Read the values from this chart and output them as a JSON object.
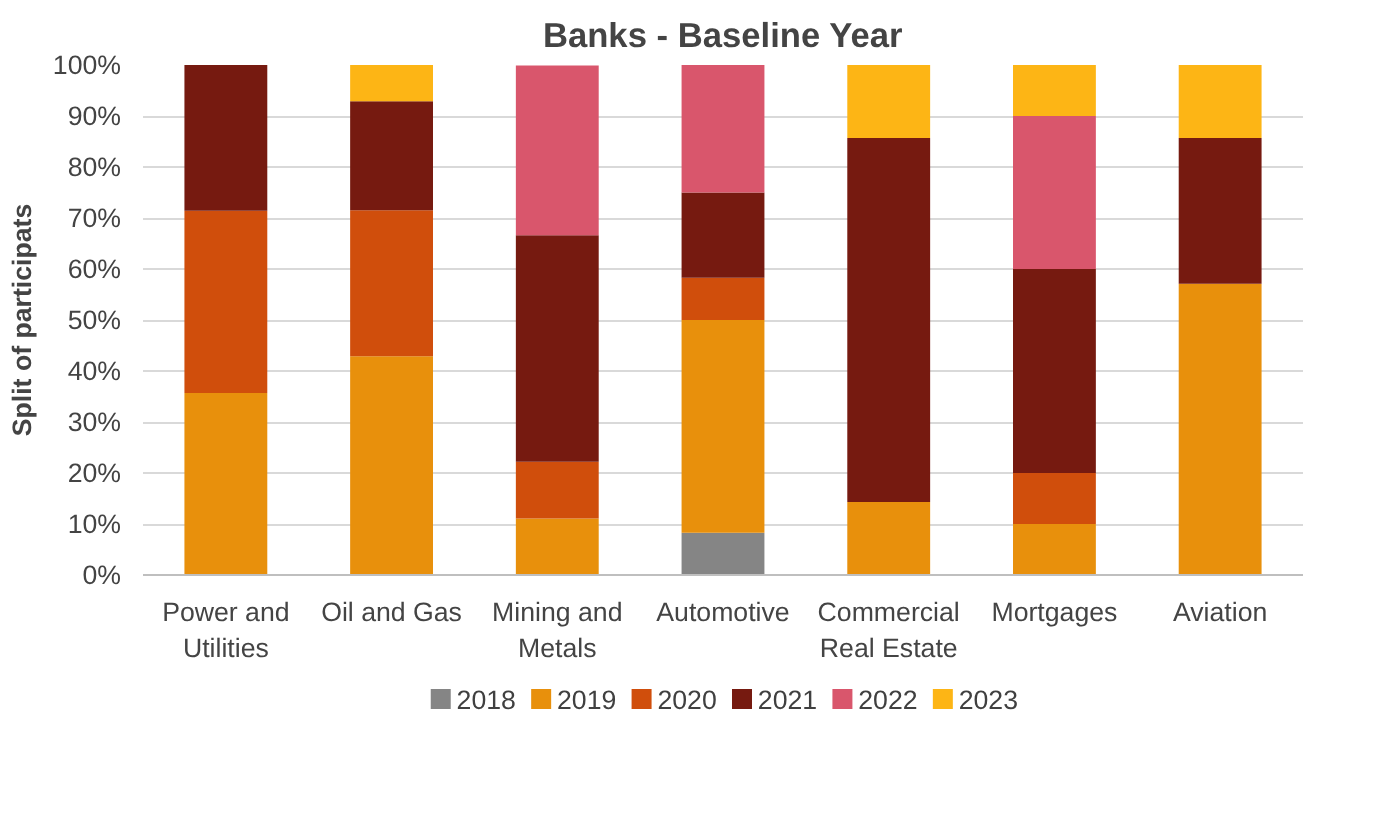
{
  "chart_data": {
    "type": "bar",
    "stacked": true,
    "title": "Banks - Baseline Year",
    "ylabel": "Split of participats",
    "categories": [
      "Power and\nUtilities",
      "Oil and Gas",
      "Mining and\nMetals",
      "Automotive",
      "Commercial\nReal Estate",
      "Mortgages",
      "Aviation"
    ],
    "series": [
      {
        "name": "2018",
        "color": "#858585",
        "values": [
          0,
          0,
          0,
          8.3,
          0,
          0,
          0
        ]
      },
      {
        "name": "2019",
        "color": "#e8900c",
        "values": [
          35.7,
          42.9,
          11.1,
          41.7,
          14.3,
          10,
          57.1
        ]
      },
      {
        "name": "2020",
        "color": "#d04e0c",
        "values": [
          35.7,
          28.6,
          11.1,
          8.3,
          0,
          10,
          0
        ]
      },
      {
        "name": "2021",
        "color": "#761a10",
        "values": [
          28.6,
          21.4,
          44.4,
          16.7,
          71.4,
          40,
          28.6
        ]
      },
      {
        "name": "2022",
        "color": "#d9566c",
        "values": [
          0,
          0,
          33.3,
          25,
          0,
          30,
          0
        ]
      },
      {
        "name": "2023",
        "color": "#fdb515",
        "values": [
          0,
          7.1,
          0,
          0,
          14.3,
          10,
          14.3
        ]
      }
    ],
    "ylim": [
      0,
      100
    ],
    "yticks": [
      {
        "value": 0,
        "label": "0%"
      },
      {
        "value": 10,
        "label": "10%"
      },
      {
        "value": 20,
        "label": "20%"
      },
      {
        "value": 30,
        "label": "30%"
      },
      {
        "value": 40,
        "label": "40%"
      },
      {
        "value": 50,
        "label": "50%"
      },
      {
        "value": 60,
        "label": "60%"
      },
      {
        "value": 70,
        "label": "70%"
      },
      {
        "value": 80,
        "label": "80%"
      },
      {
        "value": 90,
        "label": "90%"
      },
      {
        "value": 100,
        "label": "100%"
      }
    ],
    "grid": "y",
    "legend": "bottom"
  }
}
